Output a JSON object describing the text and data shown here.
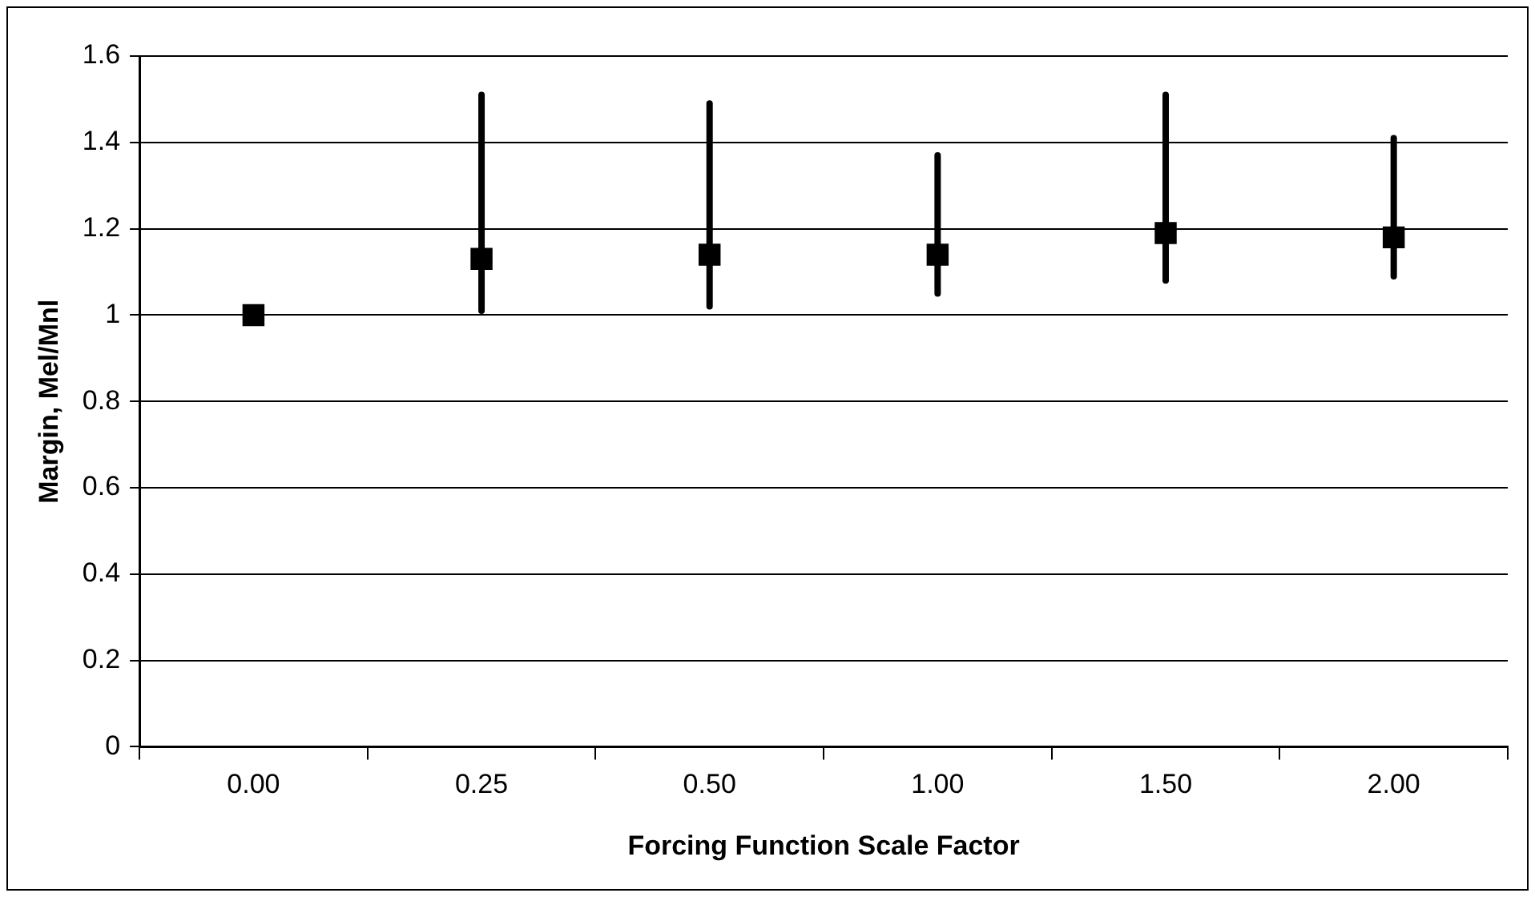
{
  "chart_data": {
    "type": "scatter",
    "xlabel": "Forcing Function Scale Factor",
    "ylabel": "Margin, Mel/Mnl",
    "categories": [
      "0.00",
      "0.25",
      "0.50",
      "1.00",
      "1.50",
      "2.00"
    ],
    "values": [
      1.0,
      1.13,
      1.14,
      1.14,
      1.19,
      1.18
    ],
    "errors": [
      null,
      [
        1.01,
        1.51
      ],
      [
        1.02,
        1.49
      ],
      [
        1.05,
        1.37
      ],
      [
        1.08,
        1.51
      ],
      [
        1.09,
        1.41
      ]
    ],
    "color": "#000000",
    "marker": "square",
    "ylim": [
      0,
      1.6
    ],
    "yticks": [
      0,
      0.2,
      0.4,
      0.6,
      0.8,
      1,
      1.2,
      1.4,
      1.6
    ],
    "grid": "y",
    "legend": false
  }
}
